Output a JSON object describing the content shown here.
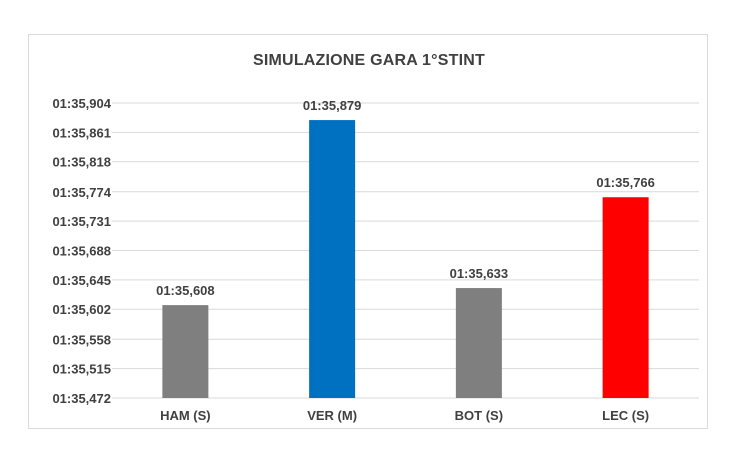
{
  "chart_data": {
    "type": "bar",
    "title": "SIMULAZIONE GARA 1°STINT",
    "xlabel": "",
    "ylabel": "",
    "categories": [
      "HAM (S)",
      "VER (M)",
      "BOT (S)",
      "LEC (S)"
    ],
    "values": [
      95.608,
      95.879,
      95.633,
      95.766
    ],
    "data_labels": [
      "01:35,608",
      "01:35,879",
      "01:35,633",
      "01:35,766"
    ],
    "bar_colors": [
      "#7f7f7f",
      "#0070c0",
      "#7f7f7f",
      "#ff0000"
    ],
    "ylim": [
      95.472,
      95.904
    ],
    "y_ticks": [
      {
        "value": 95.904,
        "label": "01:35,904"
      },
      {
        "value": 95.861,
        "label": "01:35,861"
      },
      {
        "value": 95.818,
        "label": "01:35,818"
      },
      {
        "value": 95.774,
        "label": "01:35,774"
      },
      {
        "value": 95.731,
        "label": "01:35,731"
      },
      {
        "value": 95.688,
        "label": "01:35,688"
      },
      {
        "value": 95.645,
        "label": "01:35,645"
      },
      {
        "value": 95.602,
        "label": "01:35,602"
      },
      {
        "value": 95.558,
        "label": "01:35,558"
      },
      {
        "value": 95.515,
        "label": "01:35,515"
      },
      {
        "value": 95.472,
        "label": "01:35,472"
      }
    ],
    "grid": true,
    "legend": "none",
    "colors": {
      "grid": "#d9d9d9",
      "text": "#404040"
    }
  }
}
